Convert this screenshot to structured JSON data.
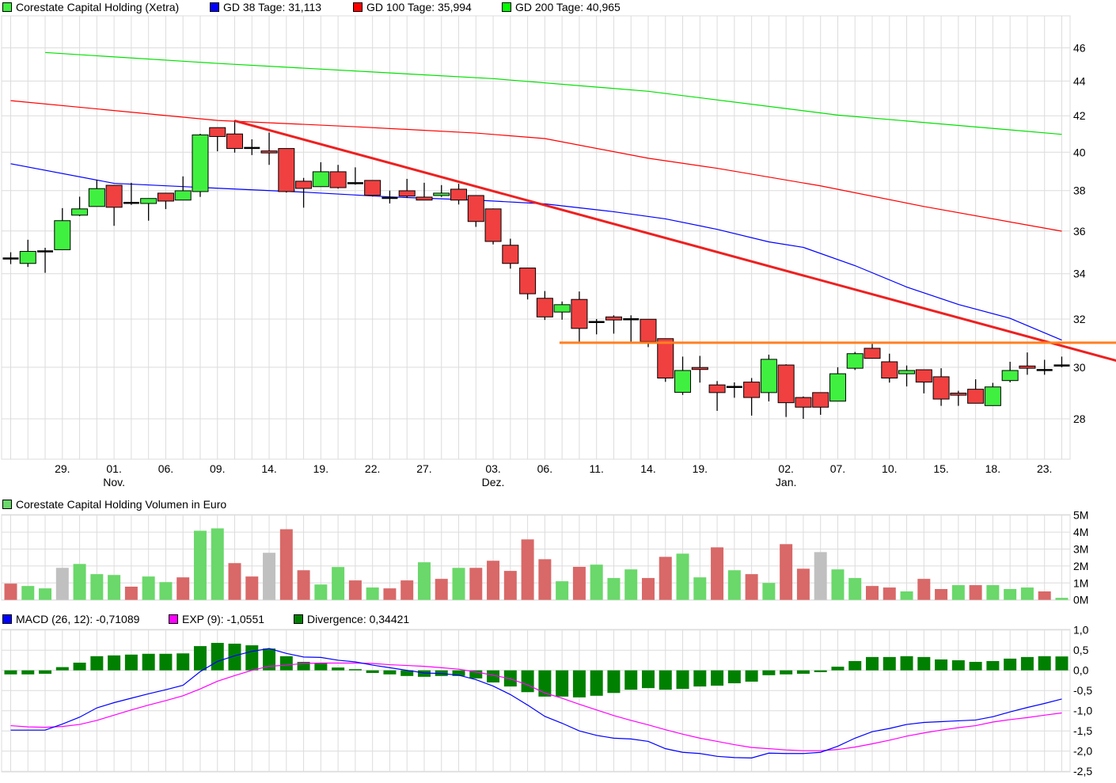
{
  "legend": {
    "price": {
      "label": "Corestate Capital Holding (Xetra)",
      "color": "#40f040"
    },
    "ma38": {
      "label": "GD 38 Tage: 31,113",
      "color": "#0000ff"
    },
    "ma100": {
      "label": "GD 100 Tage: 35,994",
      "color": "#ff0000"
    },
    "ma200": {
      "label": "GD 200 Tage: 40,965",
      "color": "#00e000"
    },
    "volume": {
      "label": "Corestate Capital Holding Volumen in Euro",
      "color": "#6ad86a"
    },
    "macd": {
      "label": "MACD (26, 12): -0,71089",
      "color": "#0000ff"
    },
    "exp": {
      "label": "EXP (9): -1,0551",
      "color": "#ff00ff"
    },
    "divergence": {
      "label": "Divergence: 0,34421",
      "color": "#008000"
    }
  },
  "chart_data": [
    {
      "type": "candlestick",
      "title": "Corestate Capital Holding (Xetra)",
      "yscale": "log",
      "ylim": [
        26.4,
        48.5
      ],
      "yticks": [
        "28",
        "30",
        "32",
        "34",
        "36",
        "38",
        "40",
        "42",
        "44",
        "46"
      ],
      "xlabels": [
        {
          "i": 3,
          "day": "29.",
          "month": ""
        },
        {
          "i": 6,
          "day": "01.",
          "month": "Nov."
        },
        {
          "i": 9,
          "day": "06.",
          "month": ""
        },
        {
          "i": 12,
          "day": "09.",
          "month": ""
        },
        {
          "i": 15,
          "day": "14.",
          "month": ""
        },
        {
          "i": 18,
          "day": "19.",
          "month": ""
        },
        {
          "i": 21,
          "day": "22.",
          "month": ""
        },
        {
          "i": 24,
          "day": "27.",
          "month": ""
        },
        {
          "i": 28,
          "day": "03.",
          "month": "Dez."
        },
        {
          "i": 31,
          "day": "06.",
          "month": ""
        },
        {
          "i": 34,
          "day": "11.",
          "month": ""
        },
        {
          "i": 37,
          "day": "14.",
          "month": ""
        },
        {
          "i": 40,
          "day": "19.",
          "month": ""
        },
        {
          "i": 45,
          "day": "02.",
          "month": "Jan."
        },
        {
          "i": 48,
          "day": "07.",
          "month": ""
        },
        {
          "i": 51,
          "day": "10.",
          "month": ""
        },
        {
          "i": 54,
          "day": "15.",
          "month": ""
        },
        {
          "i": 57,
          "day": "18.",
          "month": ""
        },
        {
          "i": 60,
          "day": "23.",
          "month": ""
        }
      ],
      "ohlc": [
        [
          34.7,
          34.99,
          34.44,
          34.7
        ],
        [
          34.47,
          35.58,
          34.31,
          35.03
        ],
        [
          35.03,
          35.2,
          34.04,
          35.03
        ],
        [
          35.11,
          37.12,
          35.11,
          36.5
        ],
        [
          36.77,
          37.69,
          36.72,
          37.08
        ],
        [
          37.2,
          38.55,
          37.2,
          38.1
        ],
        [
          38.27,
          38.27,
          36.25,
          37.16
        ],
        [
          37.38,
          38.4,
          37.28,
          37.38
        ],
        [
          37.35,
          37.6,
          36.5,
          37.6
        ],
        [
          37.87,
          37.87,
          37.07,
          37.47
        ],
        [
          37.52,
          38.73,
          37.52,
          37.99
        ],
        [
          37.95,
          41.0,
          37.68,
          40.94
        ],
        [
          41.34,
          41.34,
          40.05,
          40.85
        ],
        [
          40.99,
          41.75,
          39.98,
          40.2
        ],
        [
          40.23,
          40.7,
          39.85,
          40.23
        ],
        [
          40.07,
          41.07,
          39.33,
          39.99
        ],
        [
          40.2,
          40.2,
          37.9,
          37.95
        ],
        [
          38.48,
          38.65,
          37.14,
          38.11
        ],
        [
          38.2,
          39.47,
          38.2,
          38.97
        ],
        [
          38.97,
          39.33,
          38.1,
          38.15
        ],
        [
          38.38,
          39.2,
          38.3,
          38.38
        ],
        [
          38.52,
          38.52,
          37.7,
          37.76
        ],
        [
          37.63,
          38.0,
          37.35,
          37.63
        ],
        [
          37.99,
          38.6,
          37.63,
          37.72
        ],
        [
          37.67,
          38.4,
          37.52,
          37.52
        ],
        [
          37.75,
          38.28,
          37.68,
          37.87
        ],
        [
          38.07,
          38.35,
          37.3,
          37.52
        ],
        [
          37.75,
          37.75,
          36.2,
          36.46
        ],
        [
          37.08,
          37.1,
          35.36,
          35.5
        ],
        [
          35.32,
          35.63,
          34.23,
          34.47
        ],
        [
          34.26,
          34.26,
          32.85,
          33.1
        ],
        [
          32.9,
          33.22,
          31.96,
          32.09
        ],
        [
          32.3,
          32.76,
          31.97,
          32.62
        ],
        [
          32.85,
          33.2,
          31.04,
          31.6
        ],
        [
          31.87,
          32.0,
          31.35,
          31.87
        ],
        [
          32.09,
          32.16,
          31.38,
          31.96
        ],
        [
          31.99,
          32.16,
          31.04,
          31.99
        ],
        [
          31.99,
          31.99,
          30.82,
          31.05
        ],
        [
          31.17,
          31.17,
          29.42,
          29.57
        ],
        [
          29.01,
          30.43,
          28.91,
          29.87
        ],
        [
          29.99,
          30.46,
          29.39,
          29.91
        ],
        [
          29.3,
          29.45,
          28.3,
          29.0
        ],
        [
          29.22,
          29.4,
          28.8,
          29.22
        ],
        [
          29.41,
          29.57,
          28.12,
          28.81
        ],
        [
          29.0,
          30.51,
          28.66,
          30.32
        ],
        [
          30.09,
          30.12,
          28.07,
          28.61
        ],
        [
          28.81,
          28.85,
          28.0,
          28.44
        ],
        [
          29.0,
          29.0,
          28.15,
          28.44
        ],
        [
          28.67,
          30.0,
          28.67,
          29.74
        ],
        [
          29.96,
          30.62,
          29.89,
          30.55
        ],
        [
          30.77,
          30.95,
          30.36,
          30.36
        ],
        [
          30.22,
          30.55,
          29.39,
          29.57
        ],
        [
          29.74,
          30.07,
          29.24,
          29.87
        ],
        [
          29.9,
          29.9,
          28.97,
          29.41
        ],
        [
          29.62,
          29.96,
          28.49,
          28.75
        ],
        [
          28.98,
          29.07,
          28.49,
          28.9
        ],
        [
          29.13,
          29.52,
          28.59,
          28.59
        ],
        [
          28.5,
          29.38,
          28.5,
          29.22
        ],
        [
          29.47,
          30.22,
          29.4,
          29.87
        ],
        [
          30.05,
          30.6,
          29.7,
          29.96
        ],
        [
          29.89,
          30.3,
          29.7,
          29.89
        ],
        [
          30.07,
          30.43,
          30.0,
          30.07
        ]
      ],
      "moving_averages": [
        {
          "name": "GD 38",
          "color": "#0000ff",
          "points": [
            [
              0,
              39.39
            ],
            [
              6,
              38.37
            ],
            [
              12,
              38.12
            ],
            [
              17,
              37.92
            ],
            [
              22,
              37.68
            ],
            [
              27,
              37.52
            ],
            [
              31,
              37.33
            ],
            [
              35,
              36.94
            ],
            [
              38,
              36.59
            ],
            [
              41,
              36.08
            ],
            [
              44,
              35.48
            ],
            [
              46,
              35.22
            ],
            [
              49,
              34.37
            ],
            [
              52,
              33.4
            ],
            [
              55,
              32.63
            ],
            [
              58,
              32.03
            ],
            [
              61,
              31.11
            ]
          ]
        },
        {
          "name": "GD 100",
          "color": "#ff0000",
          "points": [
            [
              0,
              42.86
            ],
            [
              12,
              41.74
            ],
            [
              20,
              41.39
            ],
            [
              27,
              41.04
            ],
            [
              31,
              40.74
            ],
            [
              37,
              39.68
            ],
            [
              41,
              39.15
            ],
            [
              47,
              38.24
            ],
            [
              53,
              37.2
            ],
            [
              61,
              35.99
            ]
          ]
        },
        {
          "name": "GD 200",
          "color": "#00e000",
          "points": [
            [
              2,
              45.71
            ],
            [
              12,
              45.05
            ],
            [
              28,
              44.14
            ],
            [
              37,
              43.4
            ],
            [
              48,
              42.04
            ],
            [
              61,
              40.97
            ]
          ]
        }
      ],
      "trendline": {
        "color": "#ee2020",
        "from": [
          13,
          41.72
        ],
        "to": [
          64.2,
          30.26
        ]
      },
      "support_line": {
        "color": "#ff8020",
        "from": [
          31.85,
          31.0
        ],
        "to": [
          64.2,
          31.0
        ]
      }
    },
    {
      "type": "bar",
      "title": "Corestate Capital Holding Volumen in Euro",
      "unit": "M",
      "ylim": [
        0,
        5
      ],
      "yticks": [
        "0M",
        "1M",
        "2M",
        "3M",
        "4M",
        "5M"
      ],
      "values": [
        0.96,
        0.82,
        0.68,
        1.89,
        2.12,
        1.52,
        1.47,
        0.78,
        1.38,
        1.05,
        1.33,
        4.08,
        4.22,
        2.17,
        1.38,
        2.78,
        4.17,
        1.75,
        0.91,
        1.94,
        1.15,
        0.73,
        0.68,
        1.15,
        2.22,
        1.24,
        1.89,
        1.89,
        2.31,
        1.71,
        3.57,
        2.4,
        1.1,
        1.95,
        2.08,
        1.29,
        1.8,
        1.29,
        2.54,
        2.73,
        1.33,
        3.1,
        1.75,
        1.52,
        1.0,
        3.29,
        1.84,
        2.82,
        1.8,
        1.29,
        0.82,
        0.73,
        0.5,
        1.24,
        0.64,
        0.87,
        0.87,
        0.87,
        0.64,
        0.73,
        0.5,
        0.12
      ],
      "colors": "rggyg ggrgg rggrr yrrgg rgrrg rgrrr rr grggg rrggr grgrr yggrr grrgr gggrg",
      "palette": {
        "g": "#6ad86a",
        "r": "#d96868",
        "y": "#c0c0c0"
      }
    },
    {
      "type": "line+bar",
      "title": "MACD",
      "ylim": [
        -2.5,
        1.0
      ],
      "yticks": [
        "1,0",
        "0,5",
        "0,0",
        "-0,5",
        "-1,0",
        "-1,5",
        "-2,0",
        "-2,5"
      ],
      "macd": [
        -1.48,
        -1.48,
        -1.48,
        -1.33,
        -1.16,
        -0.93,
        -0.8,
        -0.69,
        -0.58,
        -0.48,
        -0.37,
        -0.03,
        0.22,
        0.36,
        0.47,
        0.54,
        0.42,
        0.33,
        0.32,
        0.25,
        0.21,
        0.13,
        0.065,
        0,
        -0.065,
        -0.08,
        -0.12,
        -0.23,
        -0.39,
        -0.6,
        -0.86,
        -1.14,
        -1.31,
        -1.5,
        -1.61,
        -1.68,
        -1.7,
        -1.76,
        -1.94,
        -2.03,
        -2.06,
        -2.13,
        -2.16,
        -2.17,
        -2.05,
        -2.06,
        -2.06,
        -2.03,
        -1.88,
        -1.68,
        -1.52,
        -1.44,
        -1.34,
        -1.29,
        -1.27,
        -1.25,
        -1.23,
        -1.15,
        -1.03,
        -0.92,
        -0.82,
        -0.71
      ],
      "exp": [
        -1.37,
        -1.4,
        -1.41,
        -1.39,
        -1.34,
        -1.24,
        -1.11,
        -0.98,
        -0.86,
        -0.75,
        -0.63,
        -0.46,
        -0.27,
        -0.13,
        0.0,
        0.1,
        0.13,
        0.17,
        0.18,
        0.18,
        0.18,
        0.17,
        0.14,
        0.12,
        0.1,
        0.065,
        0.03,
        -0.04,
        -0.12,
        -0.21,
        -0.36,
        -0.56,
        -0.69,
        -0.84,
        -0.98,
        -1.12,
        -1.24,
        -1.35,
        -1.47,
        -1.58,
        -1.68,
        -1.76,
        -1.84,
        -1.91,
        -1.94,
        -1.97,
        -1.99,
        -1.99,
        -1.96,
        -1.9,
        -1.82,
        -1.73,
        -1.63,
        -1.55,
        -1.48,
        -1.42,
        -1.37,
        -1.28,
        -1.22,
        -1.17,
        -1.11,
        -1.055
      ],
      "divergence": [
        -0.1,
        -0.1,
        -0.085,
        0.08,
        0.19,
        0.35,
        0.37,
        0.39,
        0.41,
        0.41,
        0.42,
        0.6,
        0.68,
        0.66,
        0.62,
        0.54,
        0.35,
        0.21,
        0.17,
        0.07,
        0.03,
        -0.065,
        -0.1,
        -0.14,
        -0.16,
        -0.14,
        -0.14,
        -0.2,
        -0.3,
        -0.4,
        -0.54,
        -0.65,
        -0.65,
        -0.67,
        -0.63,
        -0.56,
        -0.48,
        -0.44,
        -0.48,
        -0.46,
        -0.4,
        -0.38,
        -0.32,
        -0.28,
        -0.12,
        -0.1,
        -0.085,
        -0.045,
        0.09,
        0.23,
        0.33,
        0.33,
        0.35,
        0.33,
        0.27,
        0.25,
        0.21,
        0.23,
        0.29,
        0.33,
        0.35,
        0.344
      ]
    }
  ]
}
